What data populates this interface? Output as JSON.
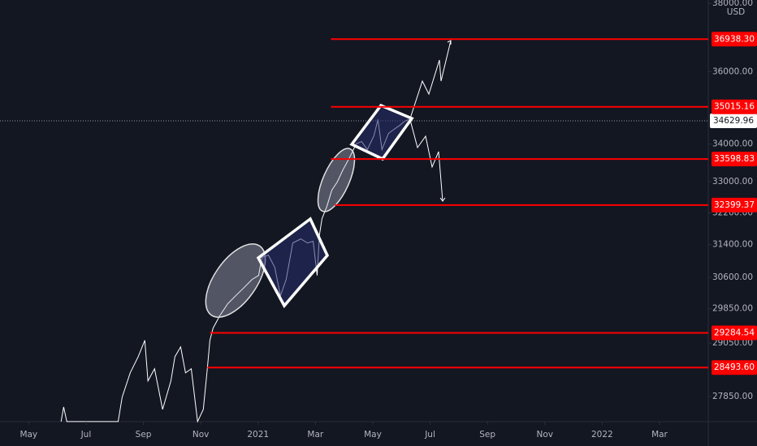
{
  "chart_data": {
    "type": "line",
    "log_scale": true,
    "currency": "USD",
    "ylim": [
      27300,
      38100
    ],
    "yticks": [
      {
        "value": 38000,
        "label": "38000.00"
      },
      {
        "value": 36000,
        "label": "36000.00"
      },
      {
        "value": 34000,
        "label": "34000.00"
      },
      {
        "value": 33000,
        "label": "33000.00"
      },
      {
        "value": 32200,
        "label": "32200.00"
      },
      {
        "value": 31400,
        "label": "31400.00"
      },
      {
        "value": 30600,
        "label": "30600.00"
      },
      {
        "value": 29850,
        "label": "29850.00"
      },
      {
        "value": 29050,
        "label": "29050.00"
      },
      {
        "value": 27850,
        "label": "27850.00"
      }
    ],
    "xlim": [
      -1,
      23.7
    ],
    "xticks": [
      {
        "value": 0,
        "label": "May"
      },
      {
        "value": 2,
        "label": "Jul"
      },
      {
        "value": 4,
        "label": "Sep"
      },
      {
        "value": 6,
        "label": "Nov"
      },
      {
        "value": 8,
        "label": "2021"
      },
      {
        "value": 10,
        "label": "Mar"
      },
      {
        "value": 12,
        "label": "May"
      },
      {
        "value": 14,
        "label": "Jul"
      },
      {
        "value": 16,
        "label": "Sep"
      },
      {
        "value": 18,
        "label": "Nov"
      },
      {
        "value": 20,
        "label": "2022"
      },
      {
        "value": 22,
        "label": "Mar"
      }
    ],
    "series": [
      {
        "color": "#ffffff",
        "x": [
          1.13,
          1.22,
          1.33,
          3.12,
          3.26,
          3.54,
          3.82,
          4.05,
          4.16,
          4.39,
          4.67,
          4.96,
          5.1,
          5.3,
          5.47,
          5.67,
          5.89,
          6.09,
          6.23,
          6.32,
          6.43,
          6.66,
          6.94,
          7.22,
          7.51,
          7.79,
          8.02,
          8.13,
          8.36,
          8.58,
          8.78,
          8.98,
          9.21,
          9.49,
          9.72,
          9.92,
          10.06,
          10.14,
          10.23,
          10.4,
          10.57,
          10.76,
          10.96,
          11.19,
          11.42,
          11.61,
          11.81,
          12.04,
          12.18,
          12.32,
          12.55,
          12.75,
          12.95,
          13.12,
          13.26
        ],
        "values": [
          27302,
          27619,
          27302,
          27302,
          27833,
          28374,
          28740,
          29113,
          28193,
          28466,
          27566,
          28193,
          28740,
          28962,
          28374,
          28466,
          27302,
          27566,
          28466,
          29113,
          29394,
          29680,
          29966,
          30158,
          30352,
          30548,
          30645,
          31083,
          31142,
          30845,
          30158,
          30548,
          31442,
          31543,
          31442,
          31484,
          30645,
          31644,
          32054,
          32364,
          32781,
          32993,
          33314,
          33636,
          34003,
          34069,
          33852,
          34222,
          34667,
          33852,
          34288,
          34402,
          34512,
          34623,
          34667
        ]
      }
    ],
    "levels": [
      {
        "value": 36938.3,
        "label": "36938.30",
        "start": 10.54
      },
      {
        "value": 35015.16,
        "label": "35015.16",
        "start": 10.54
      },
      {
        "value": 33598.83,
        "label": "33598.83",
        "start": 10.54
      },
      {
        "value": 32399.37,
        "label": "32399.37",
        "start": 10.68
      },
      {
        "value": 29284.54,
        "label": "29284.54",
        "start": 6.32
      },
      {
        "value": 28493.6,
        "label": "28493.60",
        "start": 6.23
      }
    ],
    "level_color": "#ff0000",
    "current_price": {
      "value": 34629.96,
      "label": "34629.96"
    }
  }
}
